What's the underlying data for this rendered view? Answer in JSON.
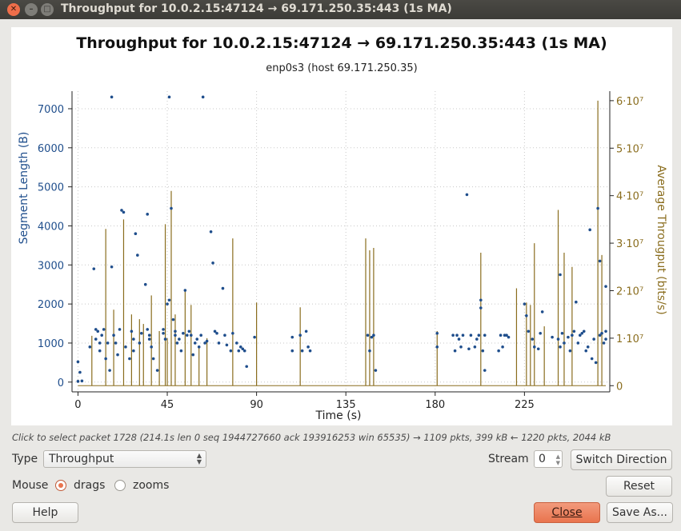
{
  "window": {
    "title": "Throughput for 10.0.2.15:47124 → 69.171.250.35:443 (1s MA)"
  },
  "chart_data": {
    "type": "scatter",
    "title": "Throughput for 10.0.2.15:47124 → 69.171.250.35:443 (1s MA)",
    "subtitle": "enp0s3 (host 69.171.250.35)",
    "xlabel": "Time (s)",
    "ylabel": "Segment Length (B)",
    "y2label": "Average Througput (bits/s)",
    "xlim": [
      -3,
      268
    ],
    "ylim": [
      -250,
      7450
    ],
    "y2lim": [
      -1300000.0,
      62000000.0
    ],
    "x_ticks": [
      "0",
      "45",
      "90",
      "135",
      "180",
      "225"
    ],
    "y_ticks": [
      "0",
      "1000",
      "2000",
      "3000",
      "4000",
      "5000",
      "6000",
      "7000"
    ],
    "y2_ticks": [
      "0",
      "1·10⁷",
      "2·10⁷",
      "3·10⁷",
      "4·10⁷",
      "5·10⁷",
      "6·10⁷"
    ],
    "grid": true,
    "series": [
      {
        "name": "Segment Length",
        "color": "#1f4e8c",
        "points": [
          [
            0,
            520
          ],
          [
            0,
            20
          ],
          [
            1,
            250
          ],
          [
            2,
            30
          ],
          [
            6,
            900
          ],
          [
            8,
            2900
          ],
          [
            9,
            1350
          ],
          [
            9,
            1100
          ],
          [
            10,
            1300
          ],
          [
            11,
            800
          ],
          [
            11,
            1000
          ],
          [
            12,
            1200
          ],
          [
            13,
            1350
          ],
          [
            14,
            600
          ],
          [
            15,
            1000
          ],
          [
            16,
            300
          ],
          [
            17,
            7300
          ],
          [
            17,
            2950
          ],
          [
            18,
            1200
          ],
          [
            19,
            1000
          ],
          [
            20,
            700
          ],
          [
            21,
            1350
          ],
          [
            22,
            4400
          ],
          [
            23,
            4350
          ],
          [
            24,
            900
          ],
          [
            26,
            600
          ],
          [
            27,
            1300
          ],
          [
            28,
            1100
          ],
          [
            28,
            800
          ],
          [
            29,
            3800
          ],
          [
            30,
            3250
          ],
          [
            31,
            1000
          ],
          [
            32,
            1250
          ],
          [
            34,
            2500
          ],
          [
            35,
            4300
          ],
          [
            35,
            1350
          ],
          [
            36,
            1200
          ],
          [
            36,
            1100
          ],
          [
            37,
            900
          ],
          [
            38,
            600
          ],
          [
            40,
            300
          ],
          [
            43,
            1350
          ],
          [
            43,
            1250
          ],
          [
            44,
            1100
          ],
          [
            45,
            2000
          ],
          [
            46,
            2100
          ],
          [
            46,
            7300
          ],
          [
            47,
            4450
          ],
          [
            48,
            1600
          ],
          [
            49,
            1300
          ],
          [
            49,
            1200
          ],
          [
            50,
            1000
          ],
          [
            51,
            1100
          ],
          [
            52,
            800
          ],
          [
            53,
            1250
          ],
          [
            54,
            2350
          ],
          [
            55,
            1200
          ],
          [
            56,
            1300
          ],
          [
            57,
            1200
          ],
          [
            58,
            700
          ],
          [
            59,
            1000
          ],
          [
            60,
            1100
          ],
          [
            61,
            900
          ],
          [
            62,
            1200
          ],
          [
            63,
            7300
          ],
          [
            64,
            1000
          ],
          [
            65,
            1050
          ],
          [
            67,
            3850
          ],
          [
            68,
            3050
          ],
          [
            69,
            1300
          ],
          [
            70,
            1250
          ],
          [
            71,
            1000
          ],
          [
            73,
            2400
          ],
          [
            74,
            1200
          ],
          [
            75,
            950
          ],
          [
            77,
            800
          ],
          [
            78,
            1250
          ],
          [
            80,
            1000
          ],
          [
            81,
            800
          ],
          [
            82,
            900
          ],
          [
            83,
            850
          ],
          [
            84,
            800
          ],
          [
            85,
            400
          ],
          [
            89,
            1150
          ],
          [
            108,
            800
          ],
          [
            108,
            1150
          ],
          [
            112,
            1200
          ],
          [
            113,
            800
          ],
          [
            115,
            1300
          ],
          [
            116,
            900
          ],
          [
            117,
            800
          ],
          [
            146,
            1200
          ],
          [
            147,
            800
          ],
          [
            148,
            1150
          ],
          [
            149,
            1200
          ],
          [
            150,
            300
          ],
          [
            181,
            1250
          ],
          [
            181,
            900
          ],
          [
            189,
            1200
          ],
          [
            190,
            800
          ],
          [
            191,
            1200
          ],
          [
            192,
            1100
          ],
          [
            193,
            900
          ],
          [
            194,
            1200
          ],
          [
            196,
            4800
          ],
          [
            197,
            850
          ],
          [
            198,
            1200
          ],
          [
            200,
            900
          ],
          [
            201,
            1100
          ],
          [
            202,
            1200
          ],
          [
            203,
            2100
          ],
          [
            203,
            1900
          ],
          [
            204,
            800
          ],
          [
            205,
            1200
          ],
          [
            205,
            300
          ],
          [
            212,
            800
          ],
          [
            213,
            1200
          ],
          [
            214,
            900
          ],
          [
            215,
            1200
          ],
          [
            216,
            1200
          ],
          [
            217,
            1150
          ],
          [
            225,
            2000
          ],
          [
            226,
            1700
          ],
          [
            227,
            1300
          ],
          [
            229,
            1100
          ],
          [
            230,
            900
          ],
          [
            232,
            850
          ],
          [
            233,
            1250
          ],
          [
            234,
            1800
          ],
          [
            239,
            1150
          ],
          [
            242,
            1100
          ],
          [
            243,
            900
          ],
          [
            243,
            2750
          ],
          [
            244,
            1250
          ],
          [
            245,
            1000
          ],
          [
            247,
            1150
          ],
          [
            248,
            800
          ],
          [
            249,
            1200
          ],
          [
            250,
            1300
          ],
          [
            251,
            2050
          ],
          [
            252,
            1000
          ],
          [
            253,
            1200
          ],
          [
            254,
            1250
          ],
          [
            255,
            1300
          ],
          [
            256,
            800
          ],
          [
            257,
            900
          ],
          [
            258,
            3900
          ],
          [
            259,
            600
          ],
          [
            260,
            1100
          ],
          [
            261,
            500
          ],
          [
            262,
            4450
          ],
          [
            263,
            1200
          ],
          [
            263,
            3100
          ],
          [
            264,
            1250
          ],
          [
            265,
            1000
          ],
          [
            266,
            1300
          ],
          [
            266,
            2450
          ],
          [
            266,
            1100
          ]
        ]
      },
      {
        "name": "Average Througput",
        "color": "#8a6d1e",
        "bars": [
          [
            7,
            10500000.0
          ],
          [
            14,
            33000000.0
          ],
          [
            18,
            16000000.0
          ],
          [
            23,
            35000000.0
          ],
          [
            27,
            15000000.0
          ],
          [
            31,
            14000000.0
          ],
          [
            33,
            13000000.0
          ],
          [
            37,
            19000000.0
          ],
          [
            41,
            11500000.0
          ],
          [
            44,
            34000000.0
          ],
          [
            45,
            10000000.0
          ],
          [
            47,
            41000000.0
          ],
          [
            49,
            15000000.0
          ],
          [
            54,
            20000000.0
          ],
          [
            57,
            17000000.0
          ],
          [
            61,
            8000000.0
          ],
          [
            65,
            10000000.0
          ],
          [
            78,
            31000000.0
          ],
          [
            90,
            17500000.0
          ],
          [
            112,
            16500000.0
          ],
          [
            145,
            31000000.0
          ],
          [
            147,
            28500000.0
          ],
          [
            149,
            29000000.0
          ],
          [
            181,
            11500000.0
          ],
          [
            203,
            28000000.0
          ],
          [
            221,
            20500000.0
          ],
          [
            226,
            17500000.0
          ],
          [
            228,
            17000000.0
          ],
          [
            230,
            30000000.0
          ],
          [
            235,
            12500000.0
          ],
          [
            242,
            37000000.0
          ],
          [
            245,
            28000000.0
          ],
          [
            249,
            25000000.0
          ],
          [
            262,
            60000000.0
          ],
          [
            264,
            27500000.0
          ]
        ]
      }
    ]
  },
  "status_text": "Click to select packet 1728 (214.1s len 0 seq 1944727660 ack 193916253 win 65535) → 1109 pkts, 399 kB ← 1220 pkts, 2044 kB",
  "controls": {
    "type_label": "Type",
    "type_value": "Throughput",
    "stream_label": "Stream",
    "stream_value": "0",
    "switch_direction": "Switch Direction",
    "mouse_label": "Mouse",
    "drags_label": "drags",
    "zooms_label": "zooms",
    "reset": "Reset",
    "help": "Help",
    "close": "Close",
    "save_as": "Save As..."
  },
  "colors": {
    "accent": "#e9744e",
    "segment_points": "#1f4e8c",
    "throughput_line": "#8a6d1e"
  }
}
